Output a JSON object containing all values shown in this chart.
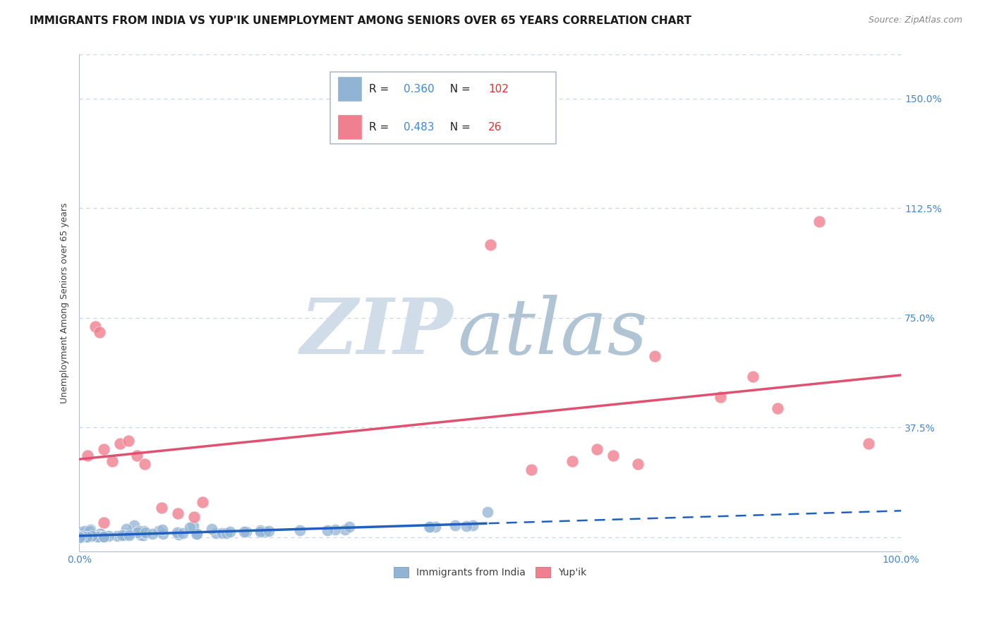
{
  "title": "IMMIGRANTS FROM INDIA VS YUP'IK UNEMPLOYMENT AMONG SENIORS OVER 65 YEARS CORRELATION CHART",
  "source": "Source: ZipAtlas.com",
  "ylabel": "Unemployment Among Seniors over 65 years",
  "xlim": [
    0.0,
    1.0
  ],
  "ylim": [
    -0.05,
    1.65
  ],
  "ytick_positions": [
    0.375,
    0.75,
    1.125,
    1.5
  ],
  "ytick_labels": [
    "37.5%",
    "75.0%",
    "112.5%",
    "150.0%"
  ],
  "india_color": "#92b4d4",
  "yupik_color": "#f08090",
  "india_trend_color": "#2060c0",
  "yupik_trend_color": "#e05070",
  "watermark_zip_color": "#c8d8e8",
  "watermark_atlas_color": "#a0b8c8",
  "background_color": "#ffffff",
  "grid_color": "#c8d4e4",
  "title_fontsize": 11,
  "axis_label_fontsize": 9,
  "tick_fontsize": 10,
  "r_color": "#3888e8",
  "n_color": "#e03030",
  "india_R": "0.360",
  "india_N": "102",
  "yupik_R": "0.483",
  "yupik_N": "26"
}
